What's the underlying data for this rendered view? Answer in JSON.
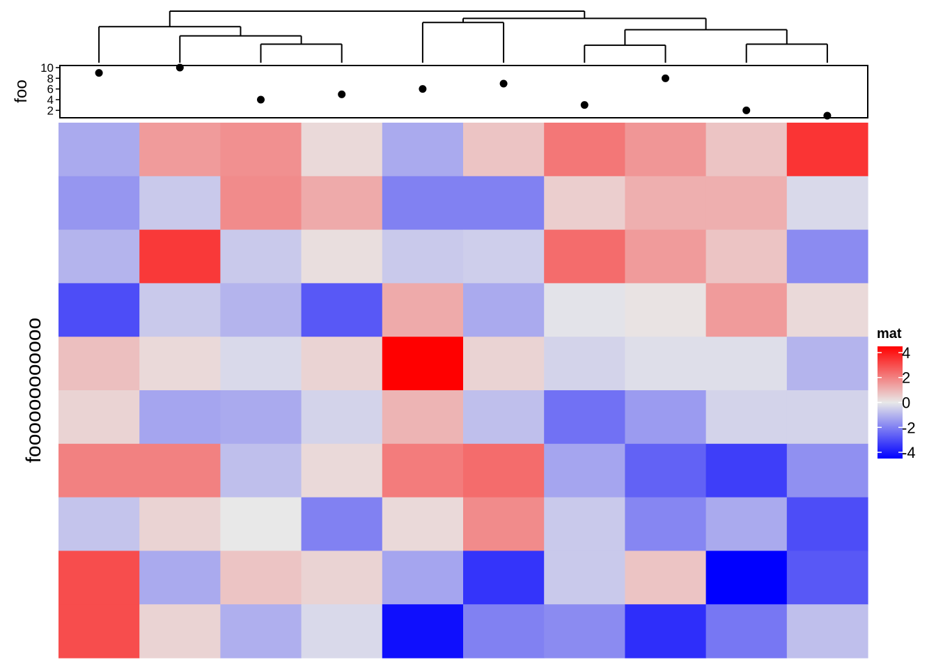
{
  "chart_data": {
    "type": "heatmap",
    "title": "",
    "ylabel": "foooooooooooo",
    "top_annotation": {
      "type": "points",
      "ylabel": "foo",
      "ylim": [
        1,
        10
      ],
      "ticks": [
        "2",
        "4",
        "6",
        "8",
        "10"
      ],
      "tick_values": [
        2,
        4,
        6,
        8,
        10
      ],
      "values": [
        9,
        10,
        4,
        5,
        6,
        7,
        3,
        8,
        2,
        1
      ]
    },
    "column_dendrogram": {
      "merges": [
        [
          3,
          4
        ],
        [
          9,
          10
        ],
        [
          7,
          8
        ],
        [
          2,
          [
            3,
            4
          ]
        ],
        [
          5,
          6
        ],
        [
          [
            7,
            8
          ],
          [
            9,
            10
          ]
        ],
        [
          1,
          [
            2,
            [
              3,
              4
            ]
          ]
        ],
        [
          [
            5,
            6
          ],
          [
            [
              7,
              8
            ],
            [
              9,
              10
            ]
          ]
        ],
        [
          [
            1,
            [
              2,
              [
                3,
                4
              ]
            ]
          ],
          [
            [
              5,
              6
            ],
            [
              [
                7,
                8
              ],
              [
                9,
                10
              ]
            ]
          ]
        ]
      ],
      "heights": [
        0.36,
        0.36,
        0.34,
        0.52,
        0.78,
        0.64,
        0.7,
        0.86,
        1.0
      ]
    },
    "matrix": [
      [
        -1.2,
        1.5,
        1.7,
        0.3,
        -1.2,
        0.7,
        2.2,
        1.6,
        0.7,
        3.5
      ],
      [
        -1.6,
        -0.6,
        1.8,
        1.2,
        -2.0,
        -2.0,
        0.5,
        1.1,
        1.1,
        -0.3
      ],
      [
        -1.0,
        3.4,
        -0.6,
        0.2,
        -0.6,
        -0.5,
        2.4,
        1.5,
        0.7,
        -1.8
      ],
      [
        -3.0,
        -0.6,
        -1.0,
        -2.8,
        1.2,
        -1.2,
        -0.1,
        0.1,
        1.5,
        0.3
      ],
      [
        0.8,
        0.3,
        -0.3,
        0.4,
        4.5,
        0.4,
        -0.4,
        -0.2,
        -0.2,
        -1.0
      ],
      [
        0.4,
        -1.3,
        -1.2,
        -0.4,
        1.0,
        -0.8,
        -2.3,
        -1.5,
        -0.4,
        -0.4
      ],
      [
        2.0,
        2.0,
        -0.8,
        0.3,
        2.1,
        2.4,
        -1.3,
        -2.6,
        -3.3,
        -1.7
      ],
      [
        -0.7,
        0.4,
        0.0,
        -2.0,
        0.3,
        1.8,
        -0.6,
        -1.9,
        -1.2,
        -3.0
      ],
      [
        3.0,
        -1.2,
        0.7,
        0.4,
        -1.3,
        -3.5,
        -0.6,
        0.7,
        -4.5,
        -2.8
      ],
      [
        3.0,
        0.4,
        -1.1,
        -0.3,
        -4.2,
        -2.0,
        -1.8,
        -3.6,
        -2.2,
        -0.8
      ]
    ],
    "legend": {
      "title": "mat",
      "placement": "right",
      "ticks": [
        "4",
        "2",
        "0",
        "-2",
        "-4"
      ],
      "tick_values": [
        4,
        2,
        0,
        -2,
        -4
      ],
      "color_stops": [
        {
          "value": -4.5,
          "color": "#0000ff"
        },
        {
          "value": 0,
          "color": "#e8e8e8"
        },
        {
          "value": 4.5,
          "color": "#ff0000"
        }
      ]
    },
    "colors": {
      "low": "#0000ff",
      "mid": "#e8e8e8",
      "high": "#ff0000"
    }
  }
}
